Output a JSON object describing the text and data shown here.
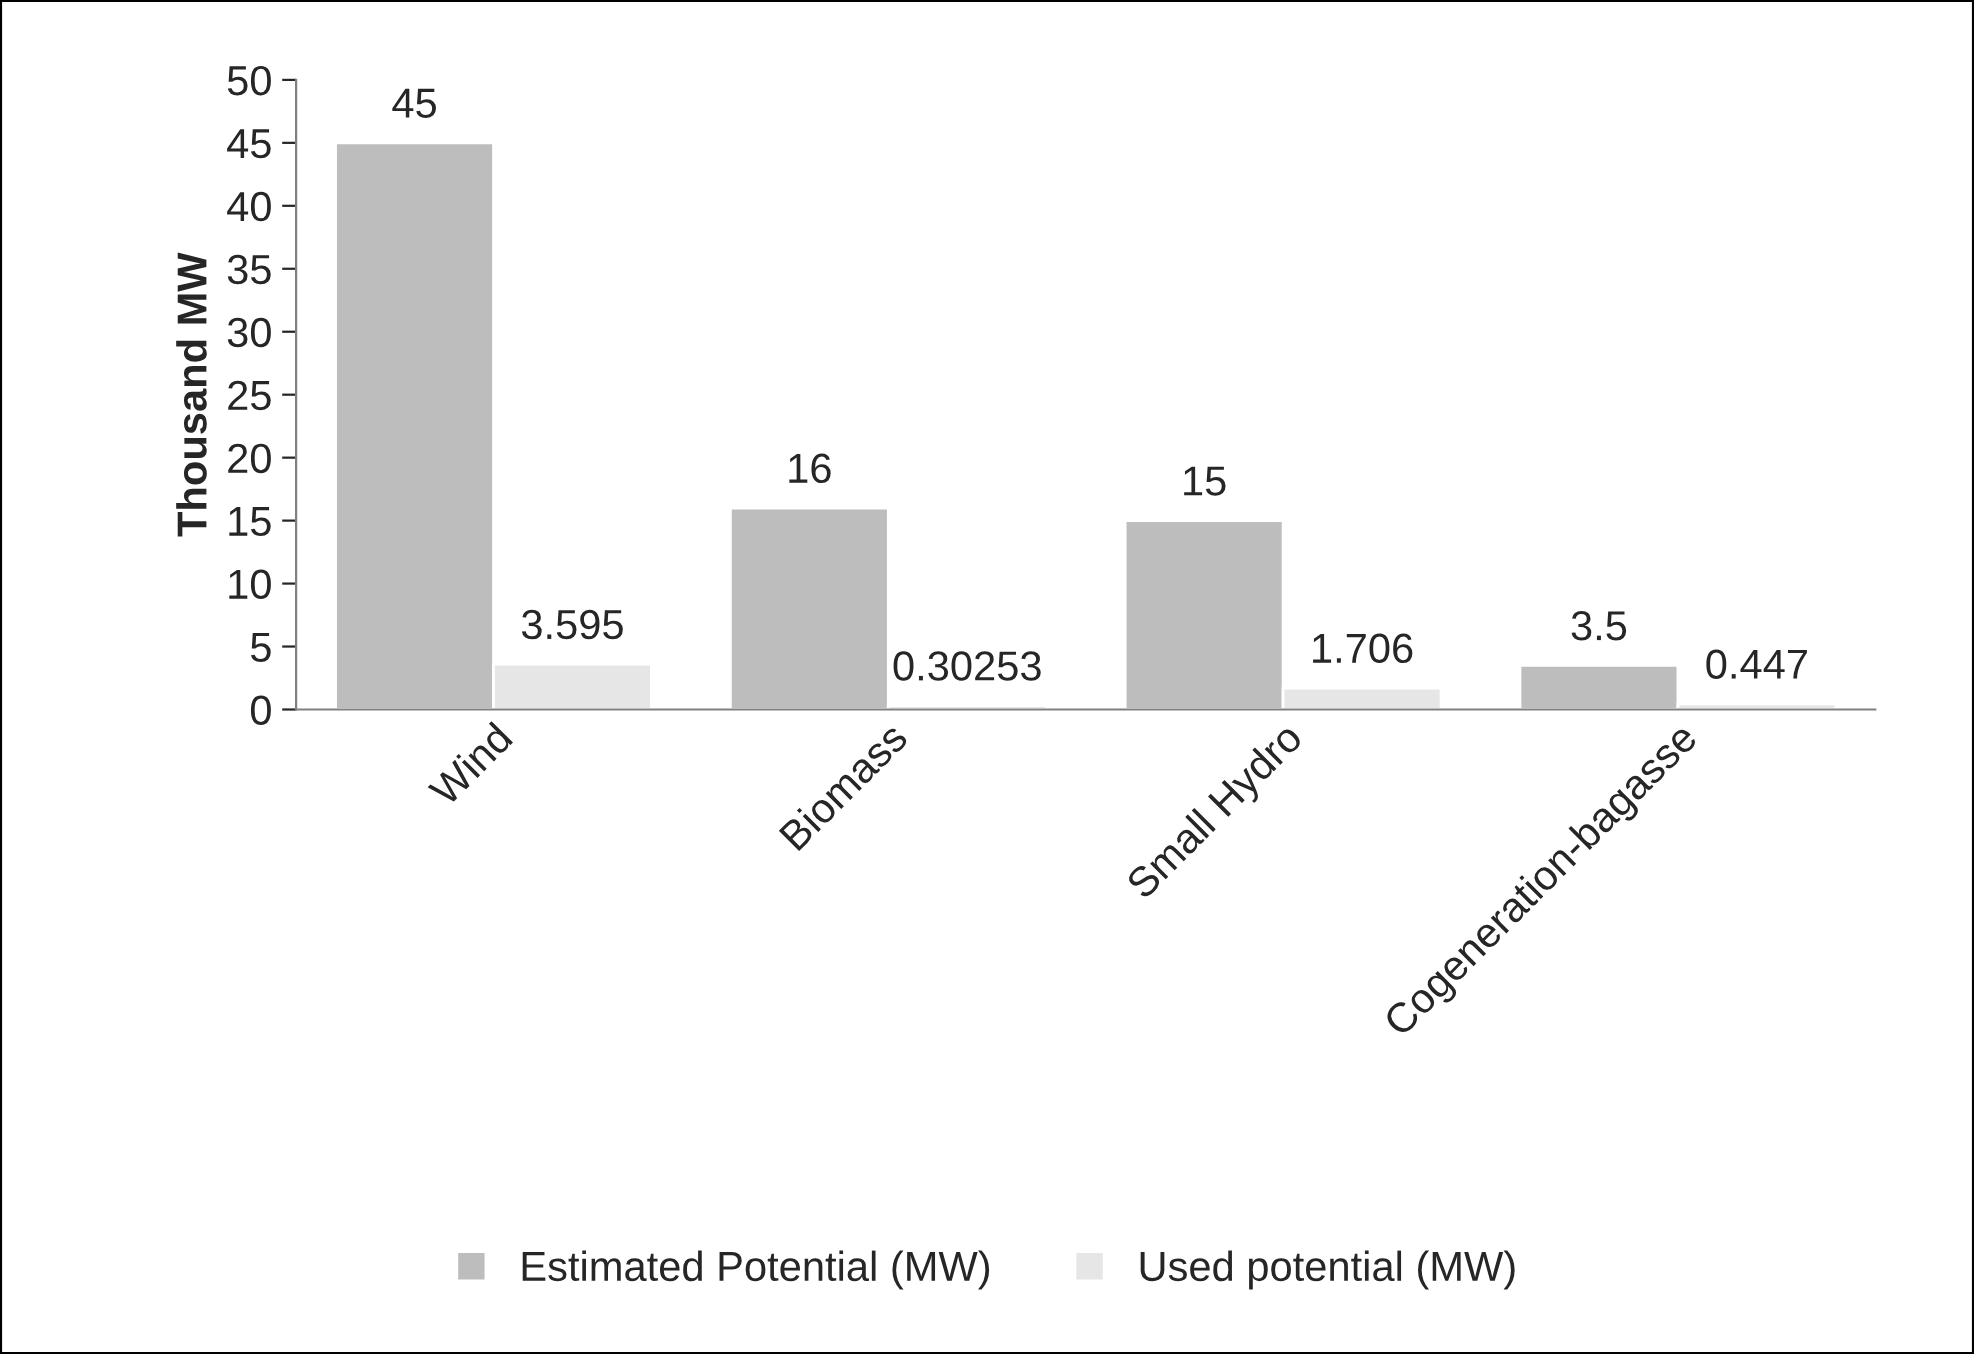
{
  "chart_data": {
    "type": "bar",
    "ylabel": "Thousand MW",
    "categories": [
      "Wind",
      "Biomass",
      "Small Hydro",
      "Cogeneration-bagasse"
    ],
    "series": [
      {
        "name": "Estimated Potential (MW)",
        "color": "#bdbdbd",
        "values": [
          45,
          16,
          15,
          3.5
        ]
      },
      {
        "name": "Used potential (MW)",
        "color": "#e6e6e6",
        "values": [
          3.595,
          0.30253,
          1.706,
          0.447
        ]
      }
    ],
    "ylim": [
      0,
      50
    ],
    "yticks": [
      0,
      5,
      10,
      15,
      20,
      25,
      30,
      35,
      40,
      45,
      50
    ],
    "grid": false,
    "legend": "bottom",
    "data_labels": true
  }
}
